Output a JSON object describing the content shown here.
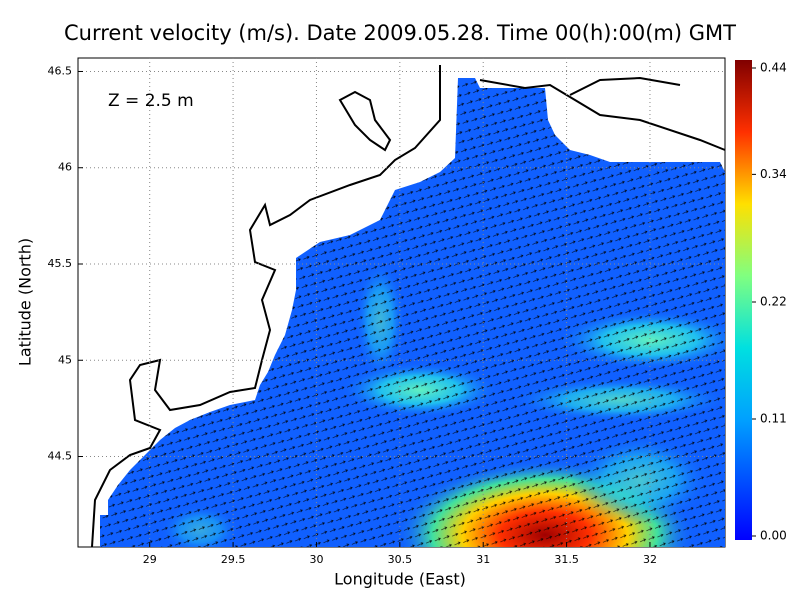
{
  "plot": {
    "title": "Current velocity (m/s). Date 2009.05.28. Time 00(h):00(m) GMT",
    "annotation": "Z = 2.5 m",
    "xlabel": "Longitude (East)",
    "ylabel": "Latitude (North)",
    "xlim": [
      28.57,
      32.45
    ],
    "ylim": [
      44.03,
      46.57
    ],
    "xticks": [
      29,
      29.5,
      30,
      30.5,
      31,
      31.5,
      32
    ],
    "yticks": [
      44.5,
      45,
      45.5,
      46,
      46.5
    ],
    "grid": true,
    "colorbar": {
      "lim": [
        0,
        0.44
      ],
      "ticks": [
        {
          "value": 0,
          "label": "0.00"
        },
        {
          "value": 0.11,
          "label": "0.11"
        },
        {
          "value": 0.22,
          "label": "0.22"
        },
        {
          "value": 0.34,
          "label": "0.34"
        },
        {
          "value": 0.44,
          "label": "0.44"
        }
      ]
    }
  }
}
